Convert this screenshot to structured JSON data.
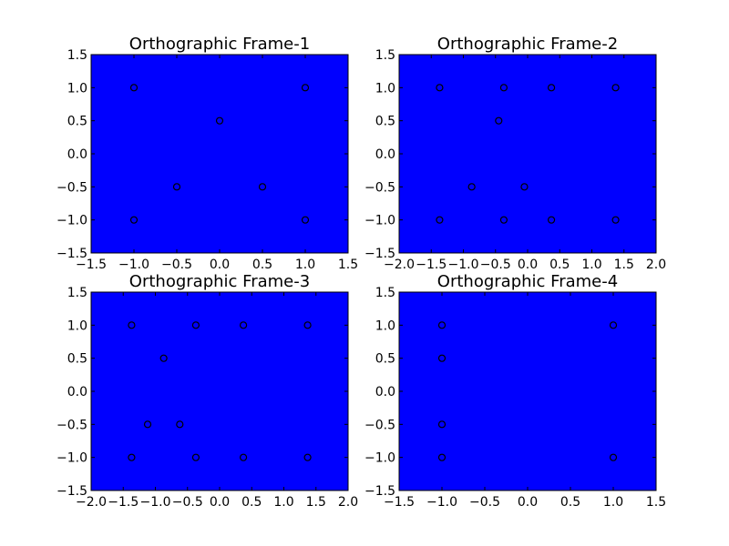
{
  "figure": {
    "background": "#ffffff",
    "axes_facecolor": "#0000ff",
    "marker_style": "open-circle",
    "marker_color": "#000000"
  },
  "chart_data": [
    {
      "type": "scatter",
      "title": "Orthographic Frame-1",
      "xlabel": "",
      "ylabel": "",
      "xlim": [
        -1.5,
        1.5
      ],
      "ylim": [
        -1.5,
        1.5
      ],
      "xticks": [
        -1.5,
        -1.0,
        -0.5,
        0.0,
        0.5,
        1.0,
        1.5
      ],
      "yticks": [
        -1.5,
        -1.0,
        -0.5,
        0.0,
        0.5,
        1.0,
        1.5
      ],
      "xtick_labels": [
        "−1.5",
        "−1.0",
        "−0.5",
        "0.0",
        "0.5",
        "1.0",
        "1.5"
      ],
      "ytick_labels": [
        "−1.5",
        "−1.0",
        "−0.5",
        "0.0",
        "0.5",
        "1.0",
        "1.5"
      ],
      "grid": false,
      "points": [
        {
          "x": -1.0,
          "y": 1.0
        },
        {
          "x": 1.0,
          "y": 1.0
        },
        {
          "x": 0.0,
          "y": 0.5
        },
        {
          "x": -0.5,
          "y": -0.5
        },
        {
          "x": 0.5,
          "y": -0.5
        },
        {
          "x": -1.0,
          "y": -1.0
        },
        {
          "x": 1.0,
          "y": -1.0
        }
      ]
    },
    {
      "type": "scatter",
      "title": "Orthographic Frame-2",
      "xlabel": "",
      "ylabel": "",
      "xlim": [
        -2.0,
        2.0
      ],
      "ylim": [
        -1.5,
        1.5
      ],
      "xticks": [
        -2.0,
        -1.5,
        -1.0,
        -0.5,
        0.0,
        0.5,
        1.0,
        1.5,
        2.0
      ],
      "yticks": [
        -1.5,
        -1.0,
        -0.5,
        0.0,
        0.5,
        1.0,
        1.5
      ],
      "xtick_labels": [
        "−2.0",
        "−1.5",
        "−1.0",
        "−0.5",
        "0.0",
        "0.5",
        "1.0",
        "1.5",
        "2.0"
      ],
      "ytick_labels": [
        "−1.5",
        "−1.0",
        "−0.5",
        "0.0",
        "0.5",
        "1.0",
        "1.5"
      ],
      "grid": false,
      "points": [
        {
          "x": -1.37,
          "y": 1.0
        },
        {
          "x": -0.37,
          "y": 1.0
        },
        {
          "x": 0.37,
          "y": 1.0
        },
        {
          "x": 1.37,
          "y": 1.0
        },
        {
          "x": -0.45,
          "y": 0.5
        },
        {
          "x": -0.87,
          "y": -0.5
        },
        {
          "x": -0.05,
          "y": -0.5
        },
        {
          "x": -1.37,
          "y": -1.0
        },
        {
          "x": -0.37,
          "y": -1.0
        },
        {
          "x": 0.37,
          "y": -1.0
        },
        {
          "x": 1.37,
          "y": -1.0
        }
      ]
    },
    {
      "type": "scatter",
      "title": "Orthographic Frame-3",
      "xlabel": "",
      "ylabel": "",
      "xlim": [
        -2.0,
        2.0
      ],
      "ylim": [
        -1.5,
        1.5
      ],
      "xticks": [
        -2.0,
        -1.5,
        -1.0,
        -0.5,
        0.0,
        0.5,
        1.0,
        1.5,
        2.0
      ],
      "yticks": [
        -1.5,
        -1.0,
        -0.5,
        0.0,
        0.5,
        1.0,
        1.5
      ],
      "xtick_labels": [
        "−2.0",
        "−1.5",
        "−1.0",
        "−0.5",
        "0.0",
        "0.5",
        "1.0",
        "1.5",
        "2.0"
      ],
      "ytick_labels": [
        "−1.5",
        "−1.0",
        "−0.5",
        "0.0",
        "0.5",
        "1.0",
        "1.5"
      ],
      "grid": false,
      "points": [
        {
          "x": -1.37,
          "y": 1.0
        },
        {
          "x": -0.37,
          "y": 1.0
        },
        {
          "x": 0.37,
          "y": 1.0
        },
        {
          "x": 1.37,
          "y": 1.0
        },
        {
          "x": -0.87,
          "y": 0.5
        },
        {
          "x": -1.12,
          "y": -0.5
        },
        {
          "x": -0.62,
          "y": -0.5
        },
        {
          "x": -1.37,
          "y": -1.0
        },
        {
          "x": -0.37,
          "y": -1.0
        },
        {
          "x": 0.37,
          "y": -1.0
        },
        {
          "x": 1.37,
          "y": -1.0
        }
      ]
    },
    {
      "type": "scatter",
      "title": "Orthographic Frame-4",
      "xlabel": "",
      "ylabel": "",
      "xlim": [
        -1.5,
        1.5
      ],
      "ylim": [
        -1.5,
        1.5
      ],
      "xticks": [
        -1.5,
        -1.0,
        -0.5,
        0.0,
        0.5,
        1.0,
        1.5
      ],
      "yticks": [
        -1.5,
        -1.0,
        -0.5,
        0.0,
        0.5,
        1.0,
        1.5
      ],
      "xtick_labels": [
        "−1.5",
        "−1.0",
        "−0.5",
        "0.0",
        "0.5",
        "1.0",
        "1.5"
      ],
      "ytick_labels": [
        "−1.5",
        "−1.0",
        "−0.5",
        "0.0",
        "0.5",
        "1.0",
        "1.5"
      ],
      "grid": false,
      "points": [
        {
          "x": -1.0,
          "y": 1.0
        },
        {
          "x": 1.0,
          "y": 1.0
        },
        {
          "x": -1.0,
          "y": 0.5
        },
        {
          "x": -1.0,
          "y": -0.5
        },
        {
          "x": -1.0,
          "y": -1.0
        },
        {
          "x": 1.0,
          "y": -1.0
        }
      ]
    }
  ]
}
